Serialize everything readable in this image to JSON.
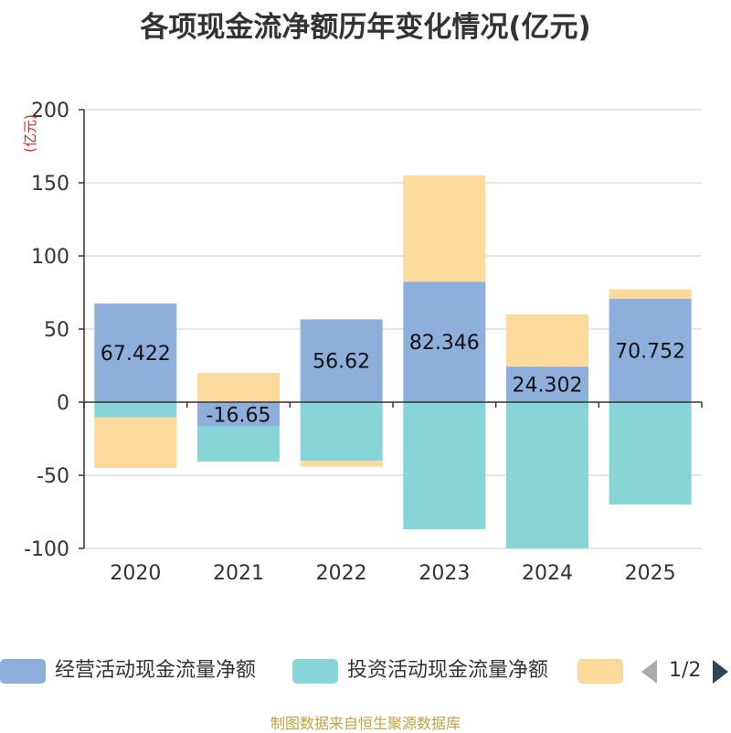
{
  "title": "各项现金流净额历年变化情况(亿元)",
  "source_note": "制图数据来自恒生聚源数据库",
  "legend_pager": "1/2",
  "chart_data": {
    "type": "bar",
    "stacked": true,
    "title": "各项现金流净额历年变化情况(亿元)",
    "unit_label": "(亿元)",
    "categories": [
      "2020",
      "2021",
      "2022",
      "2023",
      "2024",
      "2025"
    ],
    "ylim": [
      -100,
      200
    ],
    "yticks": [
      200,
      150,
      100,
      50,
      0,
      -50,
      -100
    ],
    "grid": true,
    "legend_position": "bottom",
    "series": [
      {
        "name": "经营活动现金流量净额",
        "color": "#8eaedb",
        "values": [
          67.422,
          -16.65,
          56.62,
          82.346,
          24.302,
          70.752
        ],
        "labels": [
          "67.422",
          "-16.65",
          "56.62",
          "82.346",
          "24.302",
          "70.752"
        ]
      },
      {
        "name": "投资活动现金流量净额",
        "color": "#88d5d8",
        "values": [
          -10.5,
          -24,
          -40,
          -87,
          -100,
          -70
        ]
      },
      {
        "name": "",
        "color": "#fdd99b",
        "values": [
          -34.5,
          20,
          -4,
          72.7,
          35.7,
          6.5
        ]
      }
    ]
  }
}
